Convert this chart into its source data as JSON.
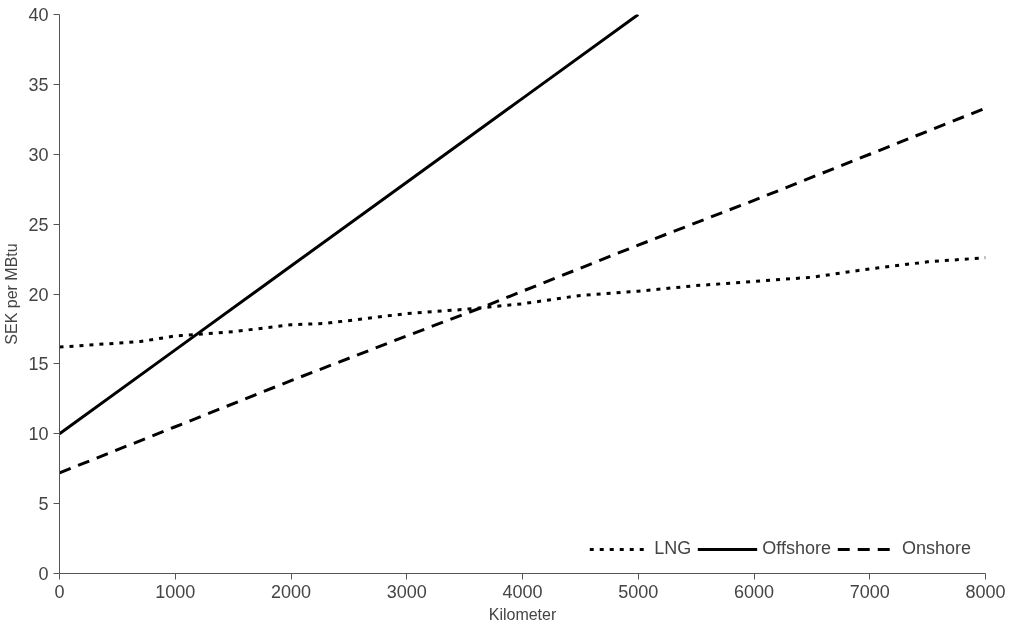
{
  "chart_data": {
    "type": "line",
    "xlabel": "Kilometer",
    "ylabel": "SEK per MBtu",
    "xlim": [
      0,
      8000
    ],
    "xticks": [
      0,
      1000,
      2000,
      3000,
      4000,
      5000,
      6000,
      7000,
      8000
    ],
    "ylim": [
      0,
      40
    ],
    "yticks": [
      0,
      5,
      10,
      15,
      20,
      25,
      30,
      35,
      40
    ],
    "grid": false,
    "legend": "bottom right",
    "marker": "none",
    "series": [
      {
        "name": "LNG",
        "color": "#000000",
        "line_style": "dotted",
        "x": [
          0,
          700,
          1000,
          1500,
          2000,
          2300,
          3000,
          3500,
          4000,
          4500,
          5000,
          5500,
          6000,
          6500,
          7000,
          7500,
          8000
        ],
        "values": [
          16.2,
          16.6,
          17.0,
          17.3,
          17.8,
          17.9,
          18.6,
          18.9,
          19.3,
          19.9,
          20.2,
          20.6,
          20.9,
          21.2,
          21.8,
          22.3,
          22.6
        ]
      },
      {
        "name": "Offshore",
        "color": "#000000",
        "line_style": "solid",
        "x": [
          0,
          1000,
          2000,
          3000,
          4000,
          5000
        ],
        "values": [
          10,
          16,
          22,
          28,
          34,
          40
        ]
      },
      {
        "name": "Onshore",
        "color": "#000000",
        "line_style": "dashed",
        "x": [
          0,
          1000,
          2000,
          3000,
          3700,
          4000,
          5000,
          6000,
          7000,
          8000
        ],
        "values": [
          7.2,
          10.5,
          13.8,
          17.0,
          19.2,
          20.2,
          23.5,
          26.7,
          30.0,
          33.3
        ]
      }
    ]
  }
}
